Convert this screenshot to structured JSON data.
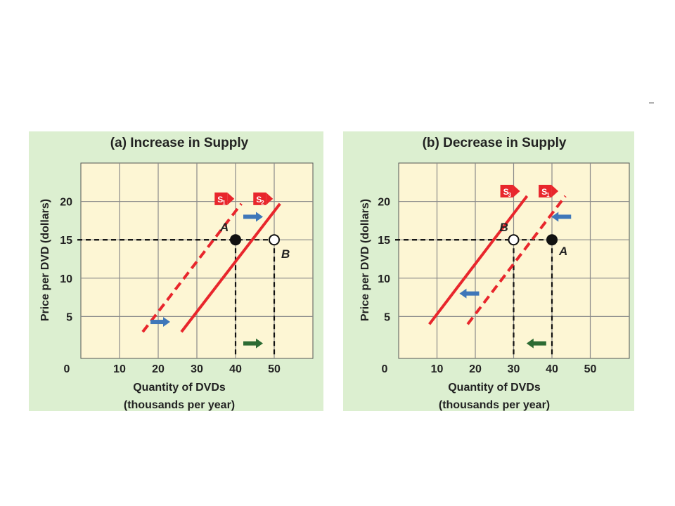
{
  "chart_data": [
    {
      "type": "line",
      "title": "(a) Increase in Supply",
      "xlabel": [
        "Quantity of DVDs",
        "(thousands per year)"
      ],
      "ylabel": "Price per DVD (dollars)",
      "x_ticks": [
        "0",
        "10",
        "20",
        "30",
        "40",
        "50"
      ],
      "y_ticks": [
        "5",
        "10",
        "15",
        "20"
      ],
      "xlim": [
        0,
        60
      ],
      "ylim": [
        0,
        25
      ],
      "grid": true,
      "colors": {
        "panel": "#dcefd0",
        "plot": "#fdf6d4",
        "grid": "#8a8a8a",
        "curve": "#e8262c",
        "tag": "#e8262c",
        "shift_up": "#3f77b9",
        "shift_down": "#2c6b33"
      },
      "series": [
        {
          "name": "S1",
          "style": "dashed",
          "points": [
            [
              16,
              3
            ],
            [
              41.5,
              19.7
            ]
          ]
        },
        {
          "name": "S2",
          "style": "solid",
          "points": [
            [
              26,
              3
            ],
            [
              51.5,
              19.7
            ]
          ]
        }
      ],
      "points": [
        {
          "label": "A",
          "x": 40,
          "y": 15,
          "filled": true
        },
        {
          "label": "B",
          "x": 50,
          "y": 15,
          "filled": false
        }
      ],
      "guides": [
        {
          "x": 40,
          "y": 15
        },
        {
          "x": 50,
          "y": 15
        }
      ],
      "arrows": [
        {
          "direction": "right",
          "x": 42,
          "y": 18,
          "color": "blue"
        },
        {
          "direction": "right",
          "x": 18,
          "y": 4.3,
          "color": "blue"
        },
        {
          "direction": "right",
          "x": 42,
          "y": 1.5,
          "color": "green"
        }
      ]
    },
    {
      "type": "line",
      "title": "(b) Decrease in Supply",
      "xlabel": [
        "Quantity of DVDs",
        "(thousands per year)"
      ],
      "ylabel": "Price per DVD (dollars)",
      "x_ticks": [
        "0",
        "10",
        "20",
        "30",
        "40",
        "50"
      ],
      "y_ticks": [
        "5",
        "10",
        "15",
        "20"
      ],
      "xlim": [
        0,
        60
      ],
      "ylim": [
        0,
        25
      ],
      "grid": true,
      "colors": {
        "panel": "#dcefd0",
        "plot": "#fdf6d4",
        "grid": "#8a8a8a",
        "curve": "#e8262c",
        "tag": "#e8262c",
        "shift_up": "#3f77b9",
        "shift_down": "#2c6b33"
      },
      "series": [
        {
          "name": "S3",
          "style": "solid",
          "points": [
            [
              8,
              4
            ],
            [
              33.5,
              20.7
            ]
          ]
        },
        {
          "name": "S1",
          "style": "dashed",
          "points": [
            [
              18,
              4
            ],
            [
              43.5,
              20.7
            ]
          ]
        }
      ],
      "points": [
        {
          "label": "B",
          "x": 30,
          "y": 15,
          "filled": false
        },
        {
          "label": "A",
          "x": 40,
          "y": 15,
          "filled": true
        }
      ],
      "guides": [
        {
          "x": 30,
          "y": 15
        },
        {
          "x": 40,
          "y": 15
        }
      ],
      "arrows": [
        {
          "direction": "left",
          "x": 45,
          "y": 18,
          "color": "blue"
        },
        {
          "direction": "left",
          "x": 21,
          "y": 8,
          "color": "blue"
        },
        {
          "direction": "left",
          "x": 38.5,
          "y": 1.5,
          "color": "green"
        }
      ]
    }
  ]
}
